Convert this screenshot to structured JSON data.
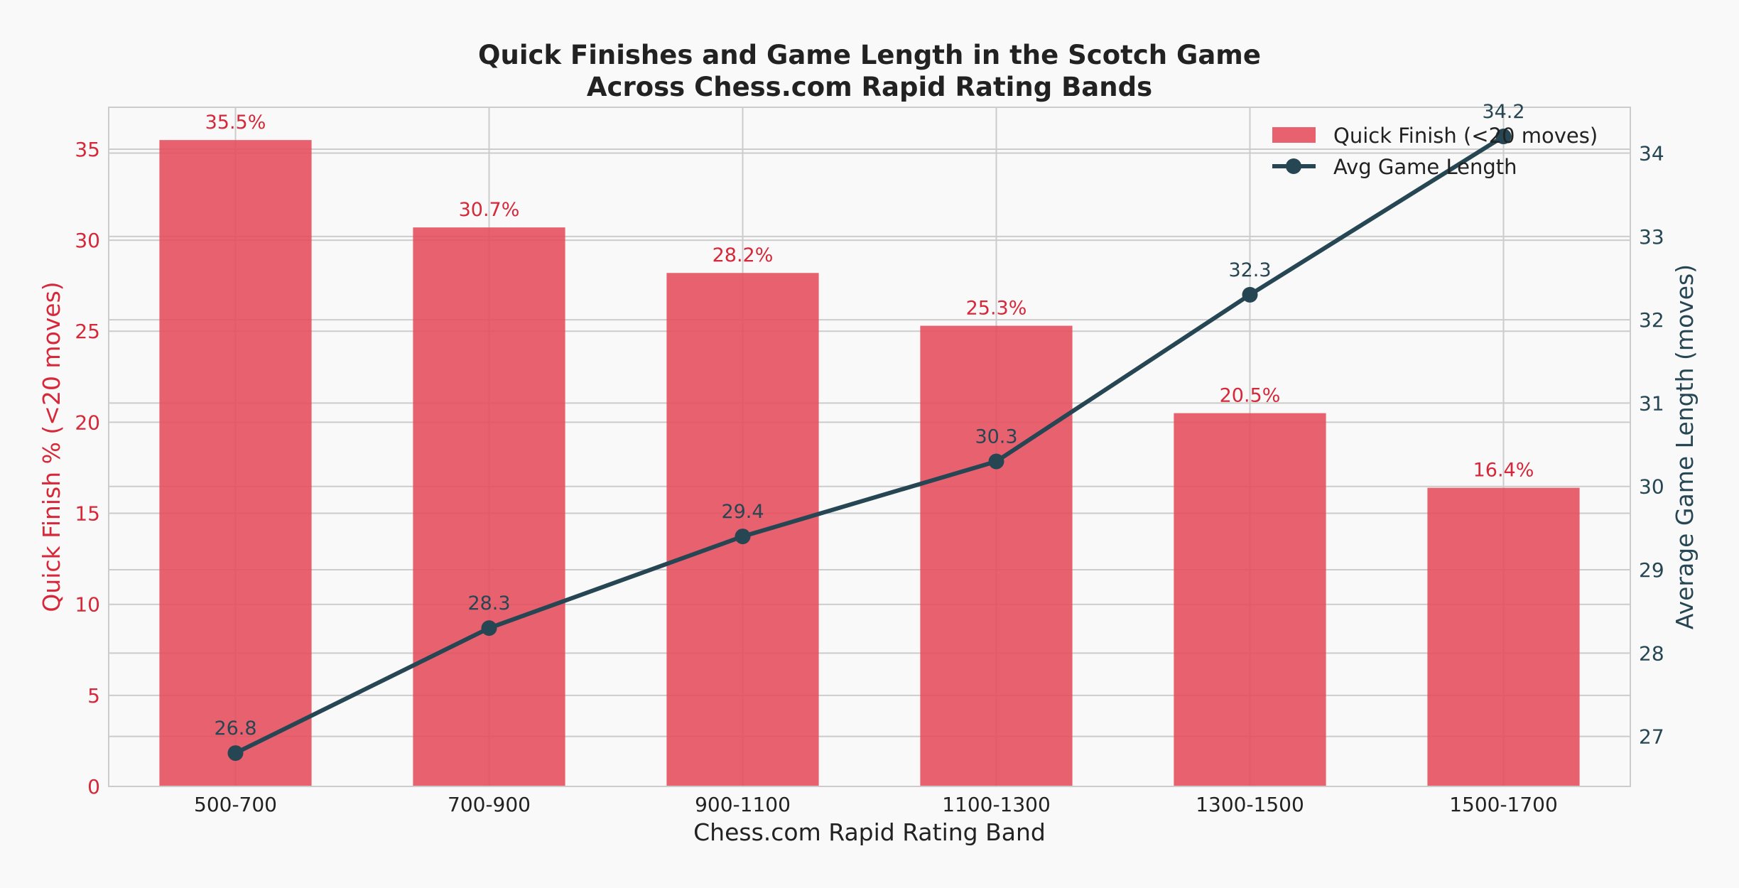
{
  "chart_data": {
    "type": "bar",
    "title": "Quick Finishes and Game Length in the Scotch Game\nAcross Chess.com Rapid Rating Bands",
    "xlabel": "Chess.com Rapid Rating Band",
    "ylabel": "Quick Finish % (<20 moves)",
    "y2label": "Average Game Length (moves)",
    "categories": [
      "500-700",
      "700-900",
      "900-1100",
      "1100-1300",
      "1300-1500",
      "1500-1700"
    ],
    "ylim": [
      0,
      37.3
    ],
    "y2lim": [
      26.4,
      34.55
    ],
    "yticks": [
      0,
      5,
      10,
      15,
      20,
      25,
      30,
      35
    ],
    "y2ticks": [
      27,
      28,
      29,
      30,
      31,
      32,
      33,
      34
    ],
    "grid": true,
    "legend_position": "top-right",
    "series": [
      {
        "name": "Quick Finish (<20 moves)",
        "type": "bar",
        "axis": "left",
        "color": "#e5505f",
        "values": [
          35.5,
          30.7,
          28.2,
          25.3,
          20.5,
          16.4
        ],
        "labels": [
          "35.5%",
          "30.7%",
          "28.2%",
          "25.3%",
          "20.5%",
          "16.4%"
        ]
      },
      {
        "name": "Avg Game Length",
        "type": "line",
        "axis": "right",
        "color": "#264653",
        "values": [
          26.8,
          28.3,
          29.4,
          30.3,
          32.3,
          34.2
        ],
        "labels": [
          "26.8",
          "28.3",
          "29.4",
          "30.3",
          "32.3",
          "34.2"
        ]
      }
    ]
  },
  "colors": {
    "left_axis": "#d62839",
    "right_axis": "#264653",
    "grid": "#cccccc",
    "frame": "#cccccc",
    "text": "#222222"
  }
}
